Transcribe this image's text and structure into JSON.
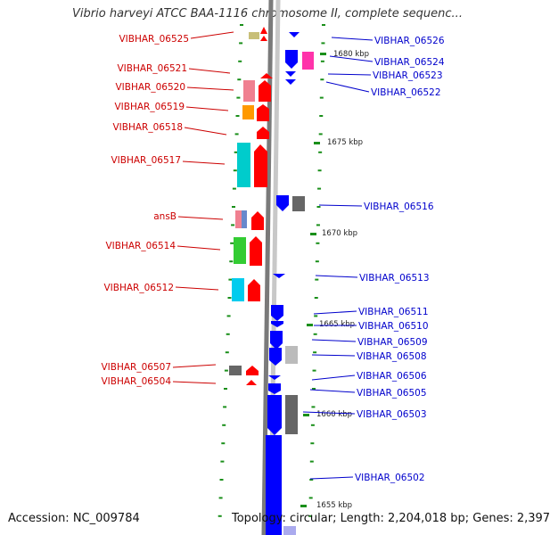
{
  "title": "Vibrio harveyi ATCC BAA-1116 chromosome II, complete sequenc...",
  "footer": {
    "accession": "Accession: NC_009784",
    "info": "Topology: circular; Length: 2,204,018 bp; Genes: 2,397"
  },
  "colors": {
    "forward_label": "#cc0000",
    "reverse_label": "#0000cc",
    "backbone_outer": "#7a7a7a",
    "backbone_inner": "#c8c8c8",
    "tick": "#1a8f1a"
  },
  "scale_labels": [
    "1680 kbp",
    "1675 kbp",
    "1670 kbp",
    "1665 kbp",
    "1660 kbp",
    "1655 kbp"
  ],
  "forward_genes": [
    "VIBHAR_06525",
    "VIBHAR_06521",
    "VIBHAR_06520",
    "VIBHAR_06519",
    "VIBHAR_06518",
    "VIBHAR_06517",
    "ansB",
    "VIBHAR_06514",
    "VIBHAR_06512",
    "VIBHAR_06507",
    "VIBHAR_06504"
  ],
  "reverse_genes": [
    "VIBHAR_06526",
    "VIBHAR_06524",
    "VIBHAR_06523",
    "VIBHAR_06522",
    "VIBHAR_06516",
    "VIBHAR_06513",
    "VIBHAR_06511",
    "VIBHAR_06510",
    "VIBHAR_06509",
    "VIBHAR_06508",
    "VIBHAR_06506",
    "VIBHAR_06505",
    "VIBHAR_06503",
    "VIBHAR_06502"
  ]
}
